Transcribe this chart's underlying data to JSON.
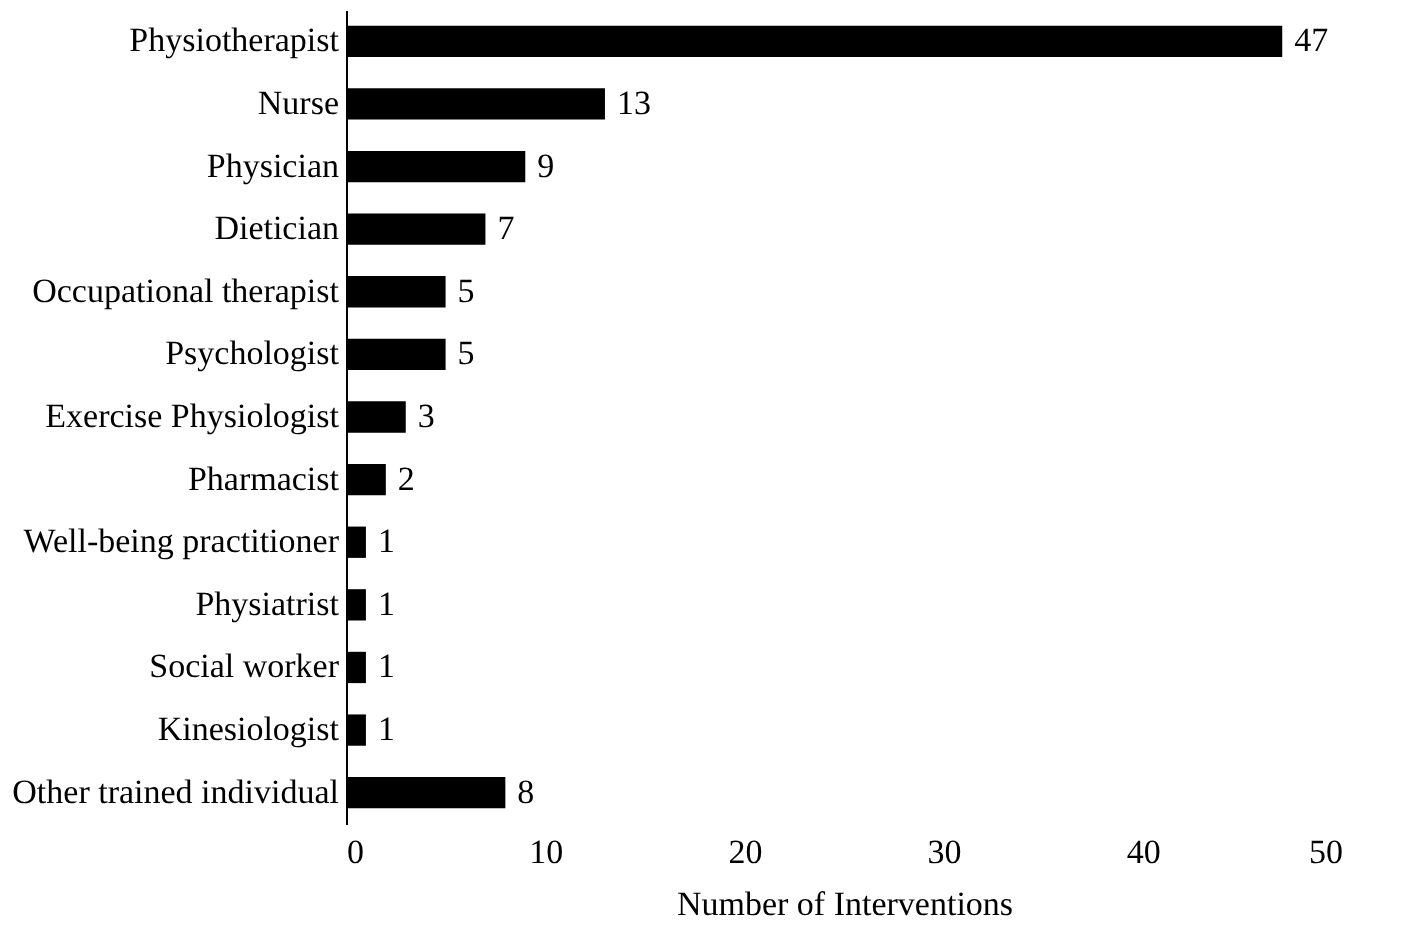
{
  "chart_data": {
    "type": "bar",
    "orientation": "horizontal",
    "xlabel": "Number of Interventions",
    "categories": [
      "Physiotherapist",
      "Nurse",
      "Physician",
      "Dietician",
      "Occupational therapist",
      "Psychologist",
      "Exercise Physiologist",
      "Pharmacist",
      "Well-being practitioner",
      "Physiatrist",
      "Social worker",
      "Kinesiologist",
      "Other trained individual"
    ],
    "values": [
      47,
      13,
      9,
      7,
      5,
      5,
      3,
      2,
      1,
      1,
      1,
      1,
      8
    ],
    "color": "#000000",
    "xlim": [
      0,
      50
    ],
    "xticks": [
      0,
      10,
      20,
      30,
      40,
      50
    ],
    "data_labels": true,
    "grid": false
  }
}
